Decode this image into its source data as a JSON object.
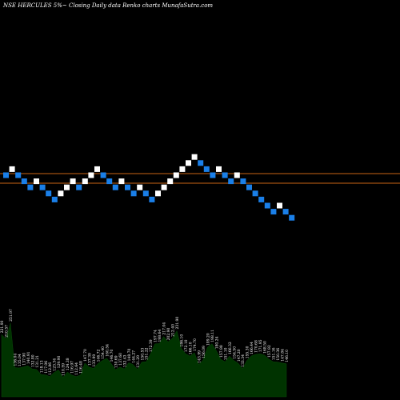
{
  "header": {
    "title": "NSE HERCULES 5%~  Closing Daily data  Renko  charts MunafaSutra.com"
  },
  "colors": {
    "background": "#000000",
    "up_brick": "#ffffff",
    "down_brick": "#1a7fe8",
    "reference_line": "#c86414",
    "volume_area": "#003300",
    "volume_label": "#ffffff"
  },
  "chart_data": {
    "type": "renko",
    "dir": [
      "D",
      "U",
      "D",
      "D",
      "D",
      "U",
      "D",
      "D",
      "D",
      "U",
      "U",
      "U",
      "D",
      "U",
      "U",
      "U",
      "D",
      "D",
      "D",
      "U",
      "D",
      "D",
      "U",
      "D",
      "D",
      "U",
      "U",
      "U",
      "U",
      "U",
      "U",
      "U",
      "D",
      "D",
      "D",
      "U",
      "D",
      "D",
      "U",
      "D",
      "D",
      "D",
      "D",
      "D",
      "D",
      "U",
      "D",
      "D"
    ],
    "reference_lines": 2,
    "volume": {
      "values": [
        221.9,
        210.57,
        251.97,
        136.04,
        135.04,
        137.9,
        140.91,
        132.8,
        131.21,
        118.13,
        117.06,
        112.86,
        123.34,
        129.9,
        110.59,
        124.38,
        116.97,
        112.64,
        116.48,
        147.7,
        137.39,
        133.99,
        146.72,
        154.4,
        160.54,
        146.7,
        130.69,
        137.6,
        132.43,
        148.7,
        144.27,
        131.29,
        150.53,
        151.22,
        172.39,
        197.74,
        198.64,
        217.04,
        202.9,
        212.4,
        231.9,
        186.1,
        172.1,
        166.1,
        174.7,
        143.99,
        156.09,
        189.2,
        198.11,
        180.24,
        157.98,
        151.1,
        166.32,
        154.5,
        147.2,
        133.34,
        155.3,
        166.44,
        170.68,
        171.95,
        168.5,
        157.92,
        151.16,
        150.36,
        147.84,
        146.1
      ],
      "labels": [
        "221.90",
        "210.57",
        "251.97",
        "136.04",
        "135.04",
        "137.90",
        "140.91",
        "132.80",
        "131.21",
        "118.13",
        "117.06",
        "112.86",
        "123.34",
        "129.90",
        "110.59",
        "124.38",
        "116.97",
        "112.64",
        "116.48",
        "147.70",
        "137.39",
        "133.99",
        "146.72",
        "154.40",
        "160.54",
        "146.70",
        "130.69",
        "137.60",
        "132.43",
        "148.70",
        "144.27",
        "131.29",
        "150.53",
        "151.22",
        "172.39",
        "197.74",
        "198.64",
        "217.04",
        "202.90",
        "212.40",
        "231.90",
        "186.10",
        "172.10",
        "166.10",
        "174.70",
        "143.99",
        "156.09",
        "189.20",
        "198.11",
        "180.24",
        "157.98",
        "151.10",
        "166.32",
        "154.50",
        "147.20",
        "133.34",
        "155.30",
        "166.44",
        "170.68",
        "171.95",
        "168.50",
        "157.92",
        "151.16",
        "150.36",
        "147.84",
        "146.10"
      ]
    }
  }
}
